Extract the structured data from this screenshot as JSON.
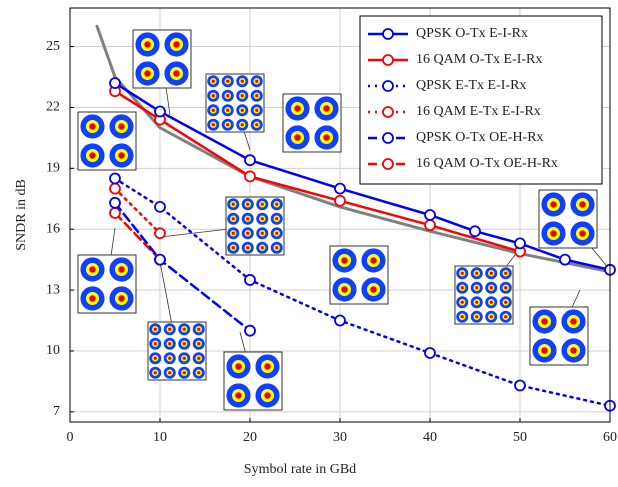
{
  "chart_data": {
    "type": "line",
    "xlabel": "Symbol rate in GBd",
    "ylabel": "SNDR in dB",
    "xlim": [
      0,
      60
    ],
    "xticks": [
      0,
      10,
      20,
      30,
      40,
      50,
      60
    ],
    "ylim": [
      6.5,
      26.9
    ],
    "yticks": [
      7,
      10,
      13,
      16,
      19,
      22,
      25
    ],
    "grid": true,
    "legend": "upper right",
    "series": [
      {
        "name": "QPSK O-Tx E-I-Rx",
        "color": "#0000ff",
        "linestyle": "solid",
        "x": [
          5,
          10,
          20,
          30,
          40,
          45,
          50,
          55,
          60
        ],
        "values": [
          23.2,
          21.8,
          19.4,
          18.0,
          16.7,
          15.9,
          15.3,
          14.5,
          14.0
        ]
      },
      {
        "name": "16 QAM O-Tx E-I-Rx",
        "color": "#ff0000",
        "linestyle": "solid",
        "x": [
          5,
          10,
          20,
          30,
          40,
          50
        ],
        "values": [
          22.8,
          21.4,
          18.6,
          17.4,
          16.2,
          14.9
        ]
      },
      {
        "name": "QPSK E-Tx E-I-Rx",
        "color": "#0000ff",
        "linestyle": "dotted",
        "x": [
          5,
          10,
          20,
          30,
          40,
          50,
          60
        ],
        "values": [
          18.5,
          17.1,
          13.5,
          11.5,
          9.9,
          8.3,
          7.3
        ]
      },
      {
        "name": "16 QAM E-Tx E-I-Rx",
        "color": "#ff0000",
        "linestyle": "dotted",
        "x": [
          5,
          10
        ],
        "values": [
          18.0,
          15.8
        ]
      },
      {
        "name": "QPSK O-Tx OE-H-Rx",
        "color": "#0000ff",
        "linestyle": "dashed",
        "x": [
          5,
          10,
          20
        ],
        "values": [
          17.3,
          14.5,
          11.0
        ]
      },
      {
        "name": "16 QAM O-Tx OE-H-Rx",
        "color": "#ff0000",
        "linestyle": "dashed",
        "x": [
          5,
          10
        ],
        "values": [
          16.8,
          14.5
        ]
      },
      {
        "color": "#808080",
        "linestyle": "solid",
        "markers": false,
        "x": [
          3,
          5,
          10,
          15,
          20,
          30,
          40,
          50,
          60
        ],
        "values": [
          26.0,
          23.5,
          21.0,
          19.8,
          18.6,
          17.1,
          15.9,
          14.8,
          13.9
        ]
      }
    ]
  }
}
